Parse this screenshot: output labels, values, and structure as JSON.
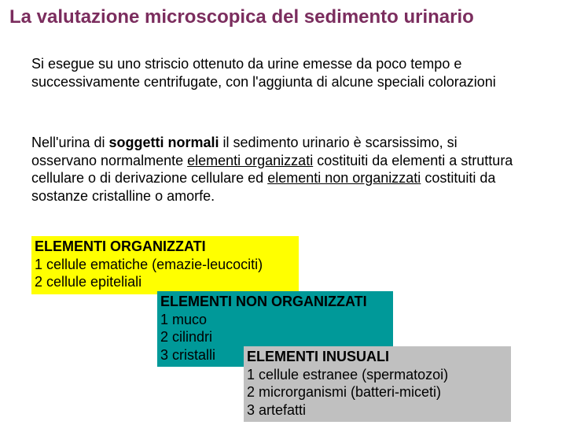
{
  "title": "La valutazione microscopica del sedimento urinario",
  "para1": "Si esegue su uno striscio ottenuto da urine emesse da poco tempo e successivamente centrifugate, con l'aggiunta di alcune speciali colorazioni",
  "para2_pre": "Nell'urina di ",
  "para2_bold1": "soggetti normali",
  "para2_mid1": " il sedimento urinario è scarsissimo, si osservano normalmente ",
  "para2_ul1": "elementi organizzati",
  "para2_mid2": " costituiti da elementi a struttura cellulare o di derivazione cellulare ed ",
  "para2_ul2": "elementi non organizzati",
  "para2_end": " costituiti da sostanze cristalline o amorfe.",
  "box_yellow": {
    "header": "ELEMENTI ORGANIZZATI",
    "line1": "1 cellule ematiche (emazie-leucociti)",
    "line2": "2 cellule epiteliali"
  },
  "box_teal": {
    "header": "ELEMENTI NON ORGANIZZATI",
    "line1": "1 muco",
    "line2": "2 cilindri",
    "line3": "3 cristalli"
  },
  "box_gray": {
    "header": "ELEMENTI INUSUALI",
    "line1": "1 cellule estranee (spermatozoi)",
    "line2": "2 microrganismi (batteri-miceti)",
    "line3": "3 artefatti"
  },
  "colors": {
    "title": "#7b2d5e",
    "yellow": "#ffff00",
    "teal": "#009999",
    "gray": "#c0c0c0",
    "text": "#000000",
    "background": "#ffffff"
  }
}
